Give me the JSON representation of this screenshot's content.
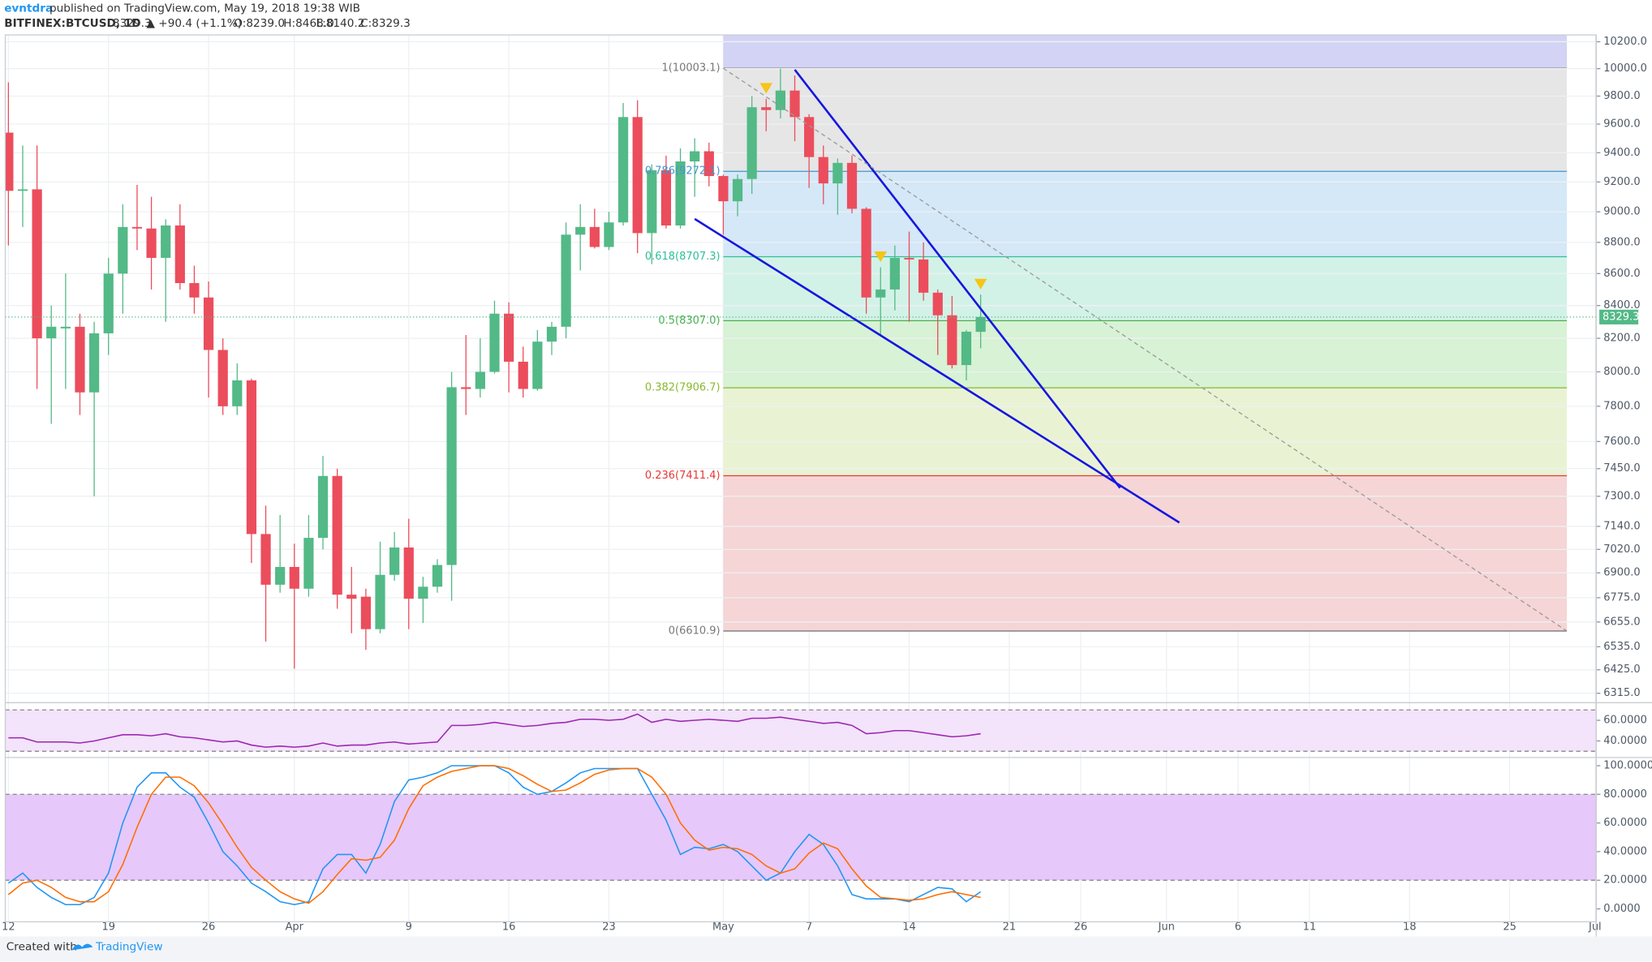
{
  "header": {
    "author": "evntdra",
    "published": "published on TradingView.com, May 19, 2018 19:38 WIB",
    "symbol": "BITFINEX:BTCUSD, 1D",
    "last": "8329.3",
    "change": "▲ +90.4 (+1.1%)",
    "ohlc": [
      "O:8239.0",
      "H:8468.0",
      "L:8140.2",
      "C:8329.3"
    ]
  },
  "footer": {
    "created": "Created with",
    "brand": "TradingView"
  },
  "chart_data": [
    {
      "type": "candlestick",
      "log_scale": true,
      "grid": true,
      "up_color": "#53b987",
      "down_color": "#eb4d5c",
      "x": [
        0,
        1,
        2,
        3,
        4,
        5,
        6,
        7,
        8,
        9,
        10,
        11,
        12,
        13,
        14,
        15,
        16,
        17,
        18,
        19,
        20,
        21,
        22,
        23,
        24,
        25,
        26,
        27,
        28,
        29,
        30,
        31,
        32,
        33,
        34,
        35,
        36,
        37,
        38,
        39,
        40,
        41,
        42,
        43,
        44,
        45,
        46,
        47,
        48,
        49,
        50,
        51,
        52,
        53,
        54,
        55,
        56,
        57,
        58,
        59,
        60,
        61,
        62,
        63,
        64,
        65,
        66,
        67,
        68
      ],
      "open": [
        9540,
        9140,
        9150,
        8200,
        8260,
        8270,
        7880,
        8230,
        8600,
        8900,
        8890,
        8700,
        8910,
        8540,
        8450,
        8130,
        7800,
        7950,
        7100,
        6840,
        6930,
        6820,
        7080,
        7410,
        6790,
        6780,
        6620,
        6890,
        7030,
        6770,
        6830,
        6940,
        7910,
        7900,
        8000,
        8350,
        8060,
        7900,
        8180,
        8270,
        8850,
        8900,
        8770,
        8930,
        9650,
        8860,
        9280,
        8910,
        9340,
        9410,
        9240,
        9070,
        9220,
        9720,
        9700,
        9840,
        9650,
        9370,
        9190,
        9330,
        9020,
        8450,
        8500,
        8700,
        8690,
        8480,
        8340,
        8040,
        8239.0
      ],
      "high": [
        9900,
        9450,
        9450,
        8400,
        8600,
        8350,
        8300,
        8700,
        9050,
        9180,
        9100,
        8950,
        9050,
        8650,
        8550,
        8200,
        8050,
        7960,
        7250,
        7200,
        7050,
        7200,
        7520,
        7450,
        6930,
        6820,
        7060,
        7110,
        7180,
        6880,
        6970,
        8000,
        8220,
        8200,
        8430,
        8420,
        8150,
        8250,
        8300,
        8930,
        9050,
        9020,
        9000,
        9750,
        9770,
        9320,
        9380,
        9430,
        9500,
        9470,
        9250,
        9250,
        9800,
        9780,
        10000,
        9950,
        9670,
        9450,
        9360,
        9380,
        9030,
        8640,
        8780,
        8870,
        8800,
        8500,
        8460,
        8250,
        8468.0
      ],
      "low": [
        8780,
        8900,
        7900,
        7700,
        7900,
        7750,
        7300,
        8100,
        8350,
        8750,
        8500,
        8300,
        8500,
        8350,
        7850,
        7750,
        7750,
        6950,
        6560,
        6800,
        6430,
        6780,
        7020,
        6720,
        6600,
        6520,
        6600,
        6860,
        6620,
        6650,
        6800,
        6760,
        7750,
        7850,
        7990,
        7880,
        7850,
        7890,
        8100,
        8200,
        8620,
        8760,
        8750,
        8910,
        8730,
        8660,
        8890,
        8890,
        9100,
        9170,
        8850,
        8970,
        9120,
        9550,
        9640,
        9480,
        9160,
        9050,
        8980,
        8990,
        8350,
        8220,
        8370,
        8300,
        8430,
        8100,
        8020,
        7950,
        8140.2
      ],
      "close": [
        9140,
        9150,
        8200,
        8270,
        8270,
        7880,
        8230,
        8600,
        8900,
        8890,
        8700,
        8910,
        8540,
        8450,
        8130,
        7800,
        7950,
        7100,
        6840,
        6930,
        6820,
        7080,
        7410,
        6790,
        6770,
        6620,
        6890,
        7030,
        6770,
        6830,
        6940,
        7910,
        7900,
        8000,
        8350,
        8060,
        7900,
        8180,
        8270,
        8850,
        8900,
        8770,
        8930,
        9650,
        8860,
        9280,
        8910,
        9340,
        9410,
        9240,
        9070,
        9220,
        9720,
        9700,
        9840,
        9650,
        9370,
        9190,
        9330,
        9020,
        8450,
        8500,
        8700,
        8690,
        8480,
        8340,
        8040,
        8240,
        8329.3
      ],
      "xlim": [
        -0.22,
        111.05
      ],
      "xticks": [
        {
          "value": 0,
          "label": "12"
        },
        {
          "value": 7,
          "label": "19"
        },
        {
          "value": 14,
          "label": "26"
        },
        {
          "value": 20,
          "label": "Apr"
        },
        {
          "value": 28,
          "label": "9"
        },
        {
          "value": 35,
          "label": "16"
        },
        {
          "value": 42,
          "label": "23"
        },
        {
          "value": 50,
          "label": "May"
        },
        {
          "value": 56,
          "label": "7"
        },
        {
          "value": 63,
          "label": "14"
        },
        {
          "value": 70,
          "label": "21"
        },
        {
          "value": 75,
          "label": "26"
        },
        {
          "value": 81,
          "label": "Jun"
        },
        {
          "value": 86,
          "label": "6"
        },
        {
          "value": 91,
          "label": "11"
        },
        {
          "value": 98,
          "label": "18"
        },
        {
          "value": 105,
          "label": "25"
        },
        {
          "value": 111,
          "label": "Jul"
        }
      ],
      "ylim": [
        6276,
        10251
      ],
      "yticks": [
        {
          "value": 10200,
          "label": "10200.0"
        },
        {
          "value": 10000,
          "label": "10000.0"
        },
        {
          "value": 9800,
          "label": "9800.0"
        },
        {
          "value": 9600,
          "label": "9600.0"
        },
        {
          "value": 9400,
          "label": "9400.0"
        },
        {
          "value": 9200,
          "label": "9200.0"
        },
        {
          "value": 9000,
          "label": "9000.0"
        },
        {
          "value": 8800,
          "label": "8800.0"
        },
        {
          "value": 8600,
          "label": "8600.0"
        },
        {
          "value": 8400,
          "label": "8400.0"
        },
        {
          "value": 8200,
          "label": "8200.0"
        },
        {
          "value": 8000,
          "label": "8000.0"
        },
        {
          "value": 7800,
          "label": "7800.0"
        },
        {
          "value": 7600,
          "label": "7600.0"
        },
        {
          "value": 7450,
          "label": "7450.0"
        },
        {
          "value": 7300,
          "label": "7300.0"
        },
        {
          "value": 7140,
          "label": "7140.0"
        },
        {
          "value": 7020,
          "label": "7020.0"
        },
        {
          "value": 6900,
          "label": "6900.0"
        },
        {
          "value": 6775,
          "label": "6775.0"
        },
        {
          "value": 6655,
          "label": "6655.0"
        },
        {
          "value": 6535,
          "label": "6535.0"
        },
        {
          "value": 6425,
          "label": "6425.0"
        },
        {
          "value": 6315,
          "label": "6315.0"
        }
      ],
      "last_price": 8329.3,
      "fib": {
        "x": [
          50,
          109
        ],
        "top_color": "#d3d3f5",
        "levels": [
          {
            "value": 10003.1,
            "label": "1(10003.1)",
            "color": "#787878",
            "fill": "#e6e6e6"
          },
          {
            "value": 9272.1,
            "label": "0.786(9272.1)",
            "color": "#4594cc",
            "fill": "#d4e8f7"
          },
          {
            "value": 8707.3,
            "label": "0.618(8707.3)",
            "color": "#2fbf98",
            "fill": "#d3f2e7"
          },
          {
            "value": 8307.0,
            "label": "0.5(8307.0)",
            "color": "#4caf50",
            "fill": "#d7f2d4"
          },
          {
            "value": 7906.7,
            "label": "0.382(7906.7)",
            "color": "#8bb82f",
            "fill": "#e9f3d4"
          },
          {
            "value": 7411.4,
            "label": "0.236(7411.4)",
            "color": "#e53935",
            "fill": "#f5d5d5"
          },
          {
            "value": 6610.9,
            "label": "0(6610.9)",
            "color": "#787878"
          }
        ]
      },
      "trendlines": [
        {
          "color": "#1616e0",
          "x": [
            55,
            77.75
          ],
          "y": [
            9992,
            7345
          ]
        },
        {
          "color": "#1616e0",
          "x": [
            48,
            81.9
          ],
          "y": [
            8953,
            7160
          ]
        },
        {
          "color": "#999999",
          "dashed": true,
          "x": [
            50,
            109
          ],
          "y": [
            10003.1,
            6610.9
          ]
        }
      ],
      "signals": [
        {
          "x": 53,
          "color": "#f5c518"
        },
        {
          "x": 61,
          "color": "#f5c518"
        },
        {
          "x": 68,
          "color": "#f5c518"
        }
      ]
    },
    {
      "type": "line",
      "color": "#9c27b0",
      "band": [
        30,
        70
      ],
      "band_color": "#f3e3fb",
      "ylim": [
        25,
        75
      ],
      "yticks": [
        {
          "value": 60,
          "label": "60.0000"
        },
        {
          "value": 40,
          "label": "40.0000"
        }
      ],
      "values": [
        43,
        43,
        39,
        39,
        39,
        38,
        40,
        43,
        46,
        46,
        45,
        47,
        44,
        43,
        41,
        39,
        40,
        36,
        34,
        35,
        34,
        35,
        38,
        35,
        36,
        36,
        38,
        39,
        37,
        38,
        39,
        55,
        55,
        56,
        58,
        56,
        54,
        55,
        57,
        58,
        61,
        61,
        60,
        61,
        66,
        58,
        61,
        59,
        60,
        61,
        60,
        59,
        62,
        62,
        63,
        61,
        59,
        57,
        58,
        55,
        47,
        48,
        50,
        50,
        48,
        46,
        44,
        45,
        47
      ]
    },
    {
      "type": "line",
      "band": [
        20,
        80
      ],
      "band_color": "#e6c8fa",
      "ylim": [
        -9,
        105
      ],
      "yticks": [
        {
          "value": 100,
          "label": "100.0000"
        },
        {
          "value": 80,
          "label": "80.0000"
        },
        {
          "value": 60,
          "label": "60.0000"
        },
        {
          "value": 40,
          "label": "40.0000"
        },
        {
          "value": 20,
          "label": "20.0000"
        },
        {
          "value": 0,
          "label": "0.0000"
        }
      ],
      "series": [
        {
          "color": "#2196f3",
          "values": [
            18,
            25,
            15,
            8,
            3,
            3,
            8,
            25,
            60,
            85,
            95,
            95,
            85,
            78,
            60,
            40,
            30,
            18,
            12,
            5,
            3,
            5,
            28,
            38,
            38,
            25,
            45,
            75,
            90,
            92,
            95,
            100,
            100,
            100,
            100,
            95,
            85,
            80,
            82,
            88,
            95,
            98,
            98,
            98,
            98,
            80,
            62,
            38,
            43,
            42,
            45,
            40,
            30,
            20,
            25,
            40,
            52,
            45,
            30,
            10,
            7,
            7,
            7,
            5,
            10,
            15,
            14,
            5,
            12
          ]
        },
        {
          "color": "#ff6d00",
          "values": [
            10,
            18,
            20,
            15,
            8,
            5,
            5,
            12,
            31,
            57,
            80,
            92,
            92,
            86,
            74,
            59,
            43,
            29,
            20,
            12,
            7,
            4,
            12,
            24,
            35,
            34,
            36,
            48,
            70,
            86,
            92,
            96,
            98,
            100,
            100,
            98,
            93,
            87,
            82,
            83,
            88,
            94,
            97,
            98,
            98,
            92,
            80,
            60,
            48,
            41,
            43,
            42,
            38,
            30,
            25,
            28,
            39,
            46,
            42,
            28,
            16,
            8,
            7,
            6,
            7,
            10,
            12,
            10,
            8
          ]
        }
      ]
    }
  ]
}
